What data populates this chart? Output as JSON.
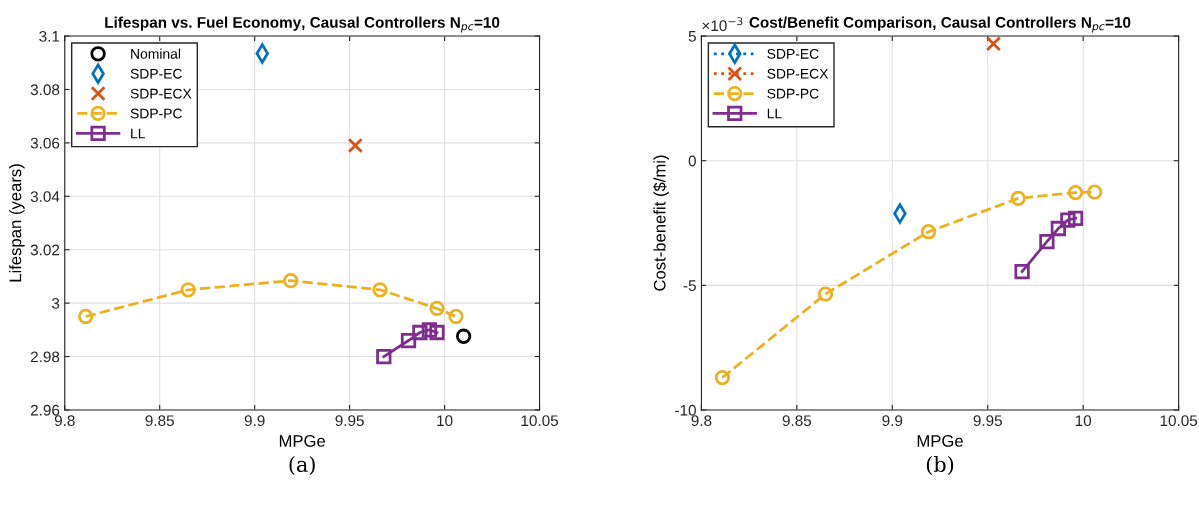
{
  "chart_data": [
    {
      "type": "scatter",
      "title": "Lifespan vs. Fuel Economy, Causal Controllers N$_{pc}$=10",
      "xlabel": "MPGe",
      "ylabel": "Lifespan (years)",
      "xlim": [
        9.8,
        10.05
      ],
      "ylim": [
        2.96,
        3.1
      ],
      "xticks": [
        9.8,
        9.85,
        9.9,
        9.95,
        10,
        10.05
      ],
      "yticks": [
        2.96,
        2.98,
        3,
        3.02,
        3.04,
        3.06,
        3.08,
        3.1
      ],
      "grid": true,
      "legend": "top left",
      "annotations": [
        "(a)"
      ],
      "series": [
        {
          "name": "Nominal",
          "marker": "circle",
          "color": "#000000",
          "x": [
            10.01
          ],
          "values": [
            2.9876
          ]
        },
        {
          "name": "SDP-EC",
          "marker": "diamond",
          "color": "#0072bd",
          "x": [
            9.904
          ],
          "values": [
            3.0935
          ]
        },
        {
          "name": "SDP-ECX",
          "marker": "cross",
          "color": "#d95319",
          "x": [
            9.953
          ],
          "values": [
            3.059
          ]
        },
        {
          "name": "SDP-PC",
          "type": "line",
          "marker": "circle",
          "line_style": "dashed",
          "color": "#edb120",
          "x": [
            9.811,
            9.865,
            9.919,
            9.966,
            9.996,
            10.006
          ],
          "values": [
            2.995,
            3.005,
            3.0084,
            3.005,
            2.998,
            2.995
          ]
        },
        {
          "name": "LL",
          "type": "line",
          "marker": "square",
          "line_style": "solid",
          "color": "#7e2f8e",
          "x": [
            9.968,
            9.981,
            9.987,
            9.992,
            9.996
          ],
          "values": [
            2.98,
            2.986,
            2.989,
            2.99,
            2.989
          ]
        }
      ]
    },
    {
      "type": "scatter",
      "title": "Cost/Benefit Comparison, Causal Controllers N$_{pc}$=10",
      "xlabel": "MPGe",
      "ylabel": "Cost-benefit ($/mi)",
      "xlim": [
        9.8,
        10.05
      ],
      "ylim": [
        -10,
        5
      ],
      "xticks": [
        9.8,
        9.85,
        9.9,
        9.95,
        10,
        10.05
      ],
      "yticks": [
        -10,
        -5,
        0,
        5
      ],
      "grid": true,
      "legend": "top left",
      "annotations": [
        "×10$^{−3}$",
        "(b)"
      ],
      "series": [
        {
          "name": "SDP-EC",
          "type": "line",
          "marker": "diamond",
          "line_style": "dotted",
          "color": "#0072bd",
          "x": [
            9.904
          ],
          "values": [
            -2.12
          ]
        },
        {
          "name": "SDP-ECX",
          "type": "line",
          "marker": "cross",
          "line_style": "dotted",
          "color": "#d95319",
          "x": [
            9.953
          ],
          "values": [
            4.69
          ]
        },
        {
          "name": "SDP-PC",
          "type": "line",
          "marker": "circle",
          "line_style": "dashed",
          "color": "#edb120",
          "x": [
            9.811,
            9.865,
            9.919,
            9.966,
            9.996,
            10.006
          ],
          "values": [
            -8.7,
            -5.35,
            -2.85,
            -1.51,
            -1.28,
            -1.26
          ]
        },
        {
          "name": "LL",
          "type": "line",
          "marker": "square",
          "line_style": "solid",
          "color": "#7e2f8e",
          "x": [
            9.968,
            9.981,
            9.987,
            9.992,
            9.996
          ],
          "values": [
            -4.45,
            -3.25,
            -2.72,
            -2.38,
            -2.31
          ]
        }
      ]
    }
  ]
}
